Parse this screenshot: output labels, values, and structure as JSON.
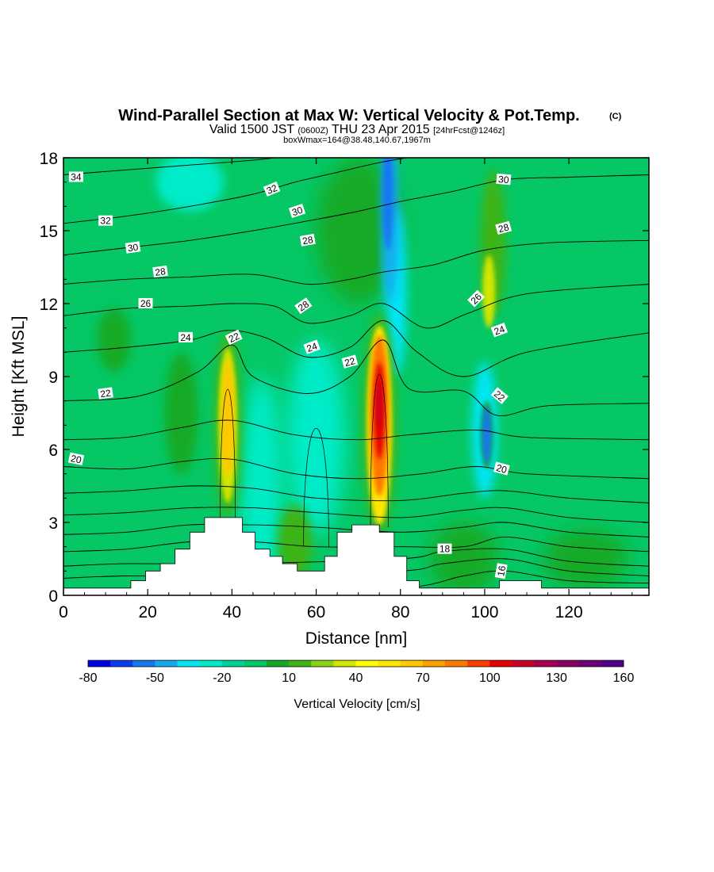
{
  "title": {
    "main": "Wind-Parallel Section at Max W: Vertical Velocity & Pot.Temp.",
    "copyright": "(C)",
    "valid_prefix": "Valid 1500 JST",
    "valid_utc": "(0600Z)",
    "valid_date": "THU 23 Apr 2015",
    "forecast": "[24hrFcst@1246z]",
    "box": "boxWmax=164@38.48,140.67,1967m"
  },
  "chart_data": {
    "type": "heatmap",
    "xlabel": "Distance [nm]",
    "ylabel": "Height [Kft MSL]",
    "xlim": [
      0,
      139
    ],
    "ylim": [
      0,
      18
    ],
    "x_ticks": [
      0,
      20,
      40,
      60,
      80,
      100,
      120
    ],
    "y_ticks": [
      0,
      3,
      6,
      9,
      12,
      15,
      18
    ],
    "colorbar": {
      "title": "Vertical Velocity [cm/s]",
      "tick_labels": [
        "-80",
        "-50",
        "-20",
        "10",
        "40",
        "70",
        "100",
        "130",
        "160"
      ],
      "colors": [
        "#0000e6",
        "#0a3cf0",
        "#1478f0",
        "#14aaf0",
        "#00e6f5",
        "#00ebc8",
        "#00d296",
        "#00c864",
        "#14aa28",
        "#3cb414",
        "#8cd214",
        "#d2e600",
        "#ffff00",
        "#ffe600",
        "#ffc800",
        "#ffa000",
        "#ff7800",
        "#ff3c00",
        "#e60000",
        "#c80028",
        "#aa0050",
        "#8c0064",
        "#6e0078",
        "#50008c"
      ]
    },
    "velocity_features": [
      {
        "kind": "updraft",
        "x_nm": 39,
        "y_kft": [
          4,
          10
        ],
        "max_cms": 70
      },
      {
        "kind": "updraft",
        "x_nm": 75,
        "y_kft": [
          3.5,
          11
        ],
        "max_cms": 164
      },
      {
        "kind": "downdraft",
        "x_nm": 77,
        "y_kft": [
          12,
          18
        ],
        "min_cms": -50
      },
      {
        "kind": "downdraft",
        "x_nm": 100,
        "y_kft": [
          5.5,
          8
        ],
        "min_cms": -50
      }
    ],
    "contour_labels": [
      "34",
      "32",
      "30",
      "28",
      "26",
      "24",
      "22",
      "20",
      "32",
      "30",
      "28",
      "28",
      "24",
      "22",
      "22",
      "30",
      "28",
      "26",
      "24",
      "22",
      "20",
      "18",
      "16"
    ],
    "terrain_kft": [
      [
        0,
        0.3
      ],
      [
        16,
        0.3
      ],
      [
        16,
        0.6
      ],
      [
        19.5,
        0.6
      ],
      [
        19.5,
        1.0
      ],
      [
        23,
        1.0
      ],
      [
        23,
        1.3
      ],
      [
        26.5,
        1.3
      ],
      [
        26.5,
        1.9
      ],
      [
        30,
        1.9
      ],
      [
        30,
        2.6
      ],
      [
        33.5,
        2.6
      ],
      [
        33.5,
        3.2
      ],
      [
        42.5,
        3.2
      ],
      [
        42.5,
        2.6
      ],
      [
        45.5,
        2.6
      ],
      [
        45.5,
        1.9
      ],
      [
        49,
        1.9
      ],
      [
        49,
        1.6
      ],
      [
        52,
        1.6
      ],
      [
        52,
        1.3
      ],
      [
        55.5,
        1.3
      ],
      [
        55.5,
        1.0
      ],
      [
        62,
        1.0
      ],
      [
        62,
        1.6
      ],
      [
        65,
        1.6
      ],
      [
        65,
        2.6
      ],
      [
        68.5,
        2.6
      ],
      [
        68.5,
        2.9
      ],
      [
        75,
        2.9
      ],
      [
        75,
        2.6
      ],
      [
        78.5,
        2.6
      ],
      [
        78.5,
        1.6
      ],
      [
        81.5,
        1.6
      ],
      [
        81.5,
        0.6
      ],
      [
        84.5,
        0.6
      ],
      [
        84.5,
        0.3
      ],
      [
        103.5,
        0.3
      ],
      [
        103.5,
        0.6
      ],
      [
        113.5,
        0.6
      ],
      [
        113.5,
        0.3
      ],
      [
        139,
        0.3
      ]
    ],
    "isentropes": [
      {
        "label": "16",
        "pts": [
          [
            0,
            0.25
          ],
          [
            20,
            0.25
          ],
          [
            40,
            0.25
          ],
          [
            80,
            0.3
          ],
          [
            95,
            0.8
          ],
          [
            105,
            1.0
          ],
          [
            120,
            0.6
          ],
          [
            139,
            0.5
          ]
        ]
      },
      {
        "label": "",
        "pts": [
          [
            0,
            0.7
          ],
          [
            15,
            0.8
          ],
          [
            40,
            0.8
          ],
          [
            80,
            1.0
          ],
          [
            90,
            1.3
          ],
          [
            105,
            1.5
          ],
          [
            120,
            1.0
          ],
          [
            139,
            0.8
          ]
        ]
      },
      {
        "label": "",
        "pts": [
          [
            0,
            1.2
          ],
          [
            15,
            1.3
          ],
          [
            40,
            1.3
          ],
          [
            80,
            1.5
          ],
          [
            90,
            1.8
          ],
          [
            105,
            1.9
          ],
          [
            120,
            1.4
          ],
          [
            139,
            1.2
          ]
        ]
      },
      {
        "label": "18",
        "pts": [
          [
            0,
            1.8
          ],
          [
            15,
            1.9
          ],
          [
            30,
            2.2
          ],
          [
            45,
            2.2
          ],
          [
            60,
            2.0
          ],
          [
            80,
            2.0
          ],
          [
            95,
            2.0
          ],
          [
            105,
            2.4
          ],
          [
            120,
            2.0
          ],
          [
            139,
            1.8
          ]
        ]
      },
      {
        "label": "",
        "pts": [
          [
            0,
            2.5
          ],
          [
            15,
            2.6
          ],
          [
            30,
            2.9
          ],
          [
            45,
            2.9
          ],
          [
            60,
            2.8
          ],
          [
            80,
            2.6
          ],
          [
            95,
            2.8
          ],
          [
            105,
            3.0
          ],
          [
            120,
            2.6
          ],
          [
            139,
            2.4
          ]
        ]
      },
      {
        "label": "",
        "pts": [
          [
            0,
            3.3
          ],
          [
            15,
            3.4
          ],
          [
            30,
            3.6
          ],
          [
            45,
            3.6
          ],
          [
            60,
            3.4
          ],
          [
            80,
            3.2
          ],
          [
            95,
            3.5
          ],
          [
            105,
            3.6
          ],
          [
            120,
            3.2
          ],
          [
            139,
            3.0
          ]
        ]
      },
      {
        "label": "",
        "pts": [
          [
            0,
            4.2
          ],
          [
            15,
            4.3
          ],
          [
            30,
            4.5
          ],
          [
            45,
            4.4
          ],
          [
            60,
            4.0
          ],
          [
            80,
            3.9
          ],
          [
            95,
            4.2
          ],
          [
            105,
            4.3
          ],
          [
            120,
            4.0
          ],
          [
            139,
            3.8
          ]
        ]
      },
      {
        "label": "20",
        "pts": [
          [
            0,
            5.3
          ],
          [
            15,
            5.2
          ],
          [
            28,
            5.5
          ],
          [
            40,
            5.6
          ],
          [
            55,
            5.0
          ],
          [
            70,
            4.8
          ],
          [
            85,
            5.0
          ],
          [
            98,
            5.3
          ],
          [
            110,
            5.0
          ],
          [
            139,
            4.8
          ]
        ]
      },
      {
        "label": "",
        "pts": [
          [
            0,
            6.4
          ],
          [
            15,
            6.5
          ],
          [
            28,
            6.9
          ],
          [
            40,
            7.2
          ],
          [
            55,
            6.6
          ],
          [
            70,
            6.4
          ],
          [
            82,
            6.6
          ],
          [
            98,
            6.8
          ],
          [
            110,
            6.5
          ],
          [
            139,
            6.4
          ]
        ]
      },
      {
        "label": "22",
        "pts": [
          [
            0,
            8.0
          ],
          [
            18,
            8.2
          ],
          [
            32,
            9.2
          ],
          [
            40,
            10.3
          ],
          [
            45,
            9.0
          ],
          [
            58,
            8.3
          ],
          [
            68,
            9.0
          ],
          [
            76,
            10.5
          ],
          [
            82,
            8.5
          ],
          [
            95,
            8.4
          ],
          [
            103,
            7.4
          ],
          [
            115,
            7.8
          ],
          [
            139,
            7.9
          ]
        ]
      },
      {
        "label": "24",
        "pts": [
          [
            0,
            10.0
          ],
          [
            15,
            10.2
          ],
          [
            30,
            10.5
          ],
          [
            39,
            10.9
          ],
          [
            48,
            10.6
          ],
          [
            58,
            9.8
          ],
          [
            68,
            10.2
          ],
          [
            76,
            11.3
          ],
          [
            84,
            10.0
          ],
          [
            95,
            9.0
          ],
          [
            110,
            10.0
          ],
          [
            139,
            10.8
          ]
        ]
      },
      {
        "label": "26",
        "pts": [
          [
            0,
            11.5
          ],
          [
            15,
            11.8
          ],
          [
            30,
            11.9
          ],
          [
            40,
            12.0
          ],
          [
            50,
            11.9
          ],
          [
            58,
            11.2
          ],
          [
            68,
            11.5
          ],
          [
            76,
            12.0
          ],
          [
            86,
            11.0
          ],
          [
            96,
            11.6
          ],
          [
            110,
            12.4
          ],
          [
            139,
            12.8
          ]
        ]
      },
      {
        "label": "28",
        "pts": [
          [
            0,
            12.8
          ],
          [
            15,
            13.0
          ],
          [
            30,
            13.1
          ],
          [
            45,
            13.2
          ],
          [
            58,
            12.8
          ],
          [
            68,
            13.0
          ],
          [
            76,
            13.3
          ],
          [
            88,
            13.6
          ],
          [
            100,
            14.2
          ],
          [
            115,
            14.5
          ],
          [
            139,
            14.6
          ]
        ]
      },
      {
        "label": "30",
        "pts": [
          [
            0,
            14.0
          ],
          [
            15,
            14.3
          ],
          [
            30,
            14.6
          ],
          [
            45,
            15.0
          ],
          [
            58,
            15.4
          ],
          [
            70,
            15.8
          ],
          [
            80,
            16.2
          ],
          [
            92,
            16.6
          ],
          [
            105,
            17.1
          ],
          [
            120,
            17.2
          ],
          [
            139,
            17.3
          ]
        ]
      },
      {
        "label": "32",
        "pts": [
          [
            0,
            15.3
          ],
          [
            15,
            15.6
          ],
          [
            30,
            16.0
          ],
          [
            45,
            16.5
          ],
          [
            55,
            17.0
          ],
          [
            65,
            17.4
          ],
          [
            75,
            17.8
          ],
          [
            85,
            18.1
          ]
        ]
      },
      {
        "label": "34",
        "pts": [
          [
            0,
            17.3
          ],
          [
            15,
            17.5
          ],
          [
            30,
            17.7
          ],
          [
            45,
            17.9
          ],
          [
            55,
            18.1
          ]
        ]
      }
    ]
  }
}
